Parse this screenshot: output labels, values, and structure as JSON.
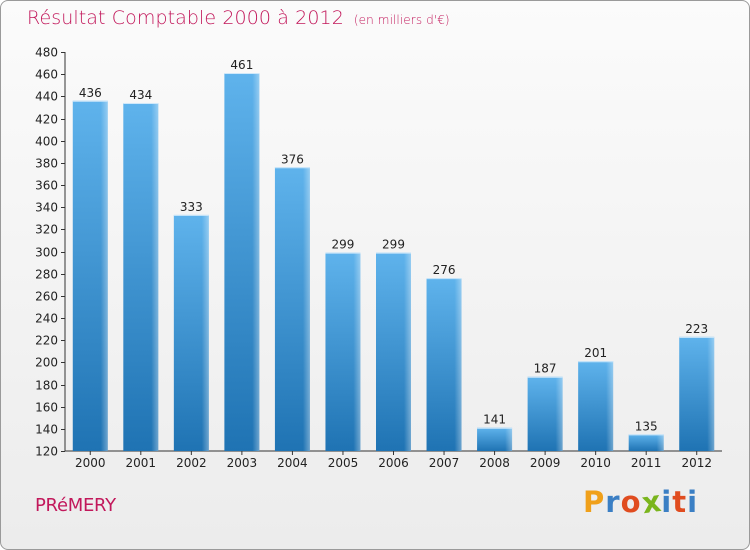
{
  "title": "Résultat Comptable 2000 à 2012",
  "subtitle": "(en milliers d'€)",
  "place": "PRéMERY",
  "logo": {
    "text": "Proxiti",
    "letters": [
      "P",
      "r",
      "o",
      "x",
      "i",
      "t",
      "i"
    ],
    "colors": [
      "#f0a01a",
      "#3b7fc4",
      "#e04c1f",
      "#7ab51d",
      "#3b7fc4",
      "#e04c1f",
      "#3b7fc4"
    ]
  },
  "colors": {
    "bar_top": "#5fb3ec",
    "bar_bottom": "#1f73b3",
    "title": "#c2185b"
  },
  "chart_data": {
    "type": "bar",
    "title": "Résultat Comptable 2000 à 2012",
    "subtitle": "(en milliers d'€)",
    "categories": [
      "2000",
      "2001",
      "2002",
      "2003",
      "2004",
      "2005",
      "2006",
      "2007",
      "2008",
      "2009",
      "2010",
      "2011",
      "2012"
    ],
    "values": [
      436,
      434,
      333,
      461,
      376,
      299,
      299,
      276,
      141,
      187,
      201,
      135,
      223
    ],
    "ylim": [
      120,
      480
    ],
    "yticks": [
      120,
      140,
      160,
      180,
      200,
      220,
      240,
      260,
      280,
      300,
      320,
      340,
      360,
      380,
      400,
      420,
      440,
      460,
      480
    ],
    "grid": false,
    "legend": "none"
  }
}
